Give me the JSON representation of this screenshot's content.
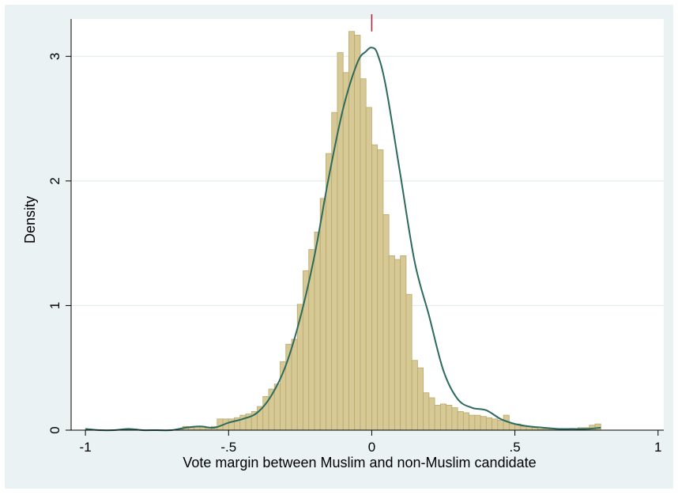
{
  "chart_data": {
    "type": "bar",
    "title": "",
    "xlabel": "Vote margin between Muslim and non-Muslim candidate",
    "ylabel": "Density",
    "xlim": [
      -1.05,
      1.02
    ],
    "ylim": [
      0,
      3.3
    ],
    "x_ticks": [
      -1,
      -0.5,
      0,
      0.5,
      1
    ],
    "x_tick_labels": [
      "-1",
      "-.5",
      "0",
      ".5",
      "1"
    ],
    "y_ticks": [
      0,
      1,
      2,
      3
    ],
    "y_tick_labels": [
      "0",
      "1",
      "2",
      "3"
    ],
    "grid": true,
    "bin_width": 0.02,
    "histogram": {
      "bin_starts": [
        -1.0,
        -0.98,
        -0.96,
        -0.94,
        -0.92,
        -0.9,
        -0.88,
        -0.86,
        -0.84,
        -0.82,
        -0.8,
        -0.78,
        -0.76,
        -0.74,
        -0.72,
        -0.7,
        -0.68,
        -0.66,
        -0.64,
        -0.62,
        -0.6,
        -0.58,
        -0.56,
        -0.54,
        -0.52,
        -0.5,
        -0.48,
        -0.46,
        -0.44,
        -0.42,
        -0.4,
        -0.38,
        -0.36,
        -0.34,
        -0.32,
        -0.3,
        -0.28,
        -0.26,
        -0.24,
        -0.22,
        -0.2,
        -0.18,
        -0.16,
        -0.14,
        -0.12,
        -0.1,
        -0.08,
        -0.06,
        -0.04,
        -0.02,
        0.0,
        0.02,
        0.04,
        0.06,
        0.08,
        0.1,
        0.12,
        0.14,
        0.16,
        0.18,
        0.2,
        0.22,
        0.24,
        0.26,
        0.28,
        0.3,
        0.32,
        0.34,
        0.36,
        0.38,
        0.4,
        0.42,
        0.44,
        0.46,
        0.48,
        0.5,
        0.52,
        0.54,
        0.56,
        0.58,
        0.6,
        0.62,
        0.64,
        0.66,
        0.68,
        0.7,
        0.72,
        0.74,
        0.76,
        0.78
      ],
      "density": [
        0.01,
        0,
        0,
        0,
        0,
        0,
        0,
        0.01,
        0.01,
        0,
        0,
        0,
        0,
        0,
        0,
        0,
        0.01,
        0.03,
        0.02,
        0.03,
        0.03,
        0.02,
        0.03,
        0.09,
        0.09,
        0.09,
        0.1,
        0.12,
        0.13,
        0.15,
        0.19,
        0.27,
        0.33,
        0.37,
        0.55,
        0.69,
        0.73,
        1.01,
        1.28,
        1.45,
        1.59,
        1.86,
        2.22,
        2.55,
        3.03,
        2.87,
        3.2,
        3.17,
        2.82,
        2.59,
        2.29,
        2.25,
        1.73,
        1.4,
        1.37,
        1.4,
        1.09,
        0.56,
        0.5,
        0.3,
        0.26,
        0.2,
        0.21,
        0.2,
        0.18,
        0.15,
        0.14,
        0.12,
        0.12,
        0.11,
        0.1,
        0.09,
        0.08,
        0.12,
        0.05,
        0.05,
        0.03,
        0.03,
        0.02,
        0.01,
        0.01,
        0.01,
        0.01,
        0.01,
        0.01,
        0.01,
        0.02,
        0.02,
        0.04,
        0.05
      ]
    },
    "kde": {
      "x": [
        -1.0,
        -0.95,
        -0.9,
        -0.85,
        -0.8,
        -0.75,
        -0.7,
        -0.65,
        -0.6,
        -0.55,
        -0.5,
        -0.45,
        -0.4,
        -0.35,
        -0.3,
        -0.25,
        -0.2,
        -0.15,
        -0.1,
        -0.05,
        -0.02,
        0.0,
        0.02,
        0.05,
        0.1,
        0.15,
        0.2,
        0.25,
        0.3,
        0.35,
        0.4,
        0.45,
        0.5,
        0.55,
        0.6,
        0.65,
        0.7,
        0.75,
        0.8
      ],
      "y": [
        0.01,
        0.0,
        0.0,
        0.01,
        0.0,
        0.0,
        0.0,
        0.02,
        0.03,
        0.02,
        0.06,
        0.09,
        0.14,
        0.28,
        0.52,
        0.9,
        1.4,
        2.03,
        2.58,
        2.95,
        3.04,
        3.07,
        3.02,
        2.75,
        2.05,
        1.35,
        0.92,
        0.48,
        0.25,
        0.18,
        0.16,
        0.09,
        0.05,
        0.03,
        0.02,
        0.01,
        0.01,
        0.01,
        0.02
      ]
    },
    "reference_line_x": 0,
    "colors": {
      "bar_fill": "#d6c995",
      "bar_edge": "#b9a86a",
      "kde_line": "#2c6a5e",
      "reference_line": "#b4233d",
      "plot_bg": "#ffffff",
      "outer_bg": "#eaf2f3",
      "grid": "#e3ecee"
    }
  }
}
